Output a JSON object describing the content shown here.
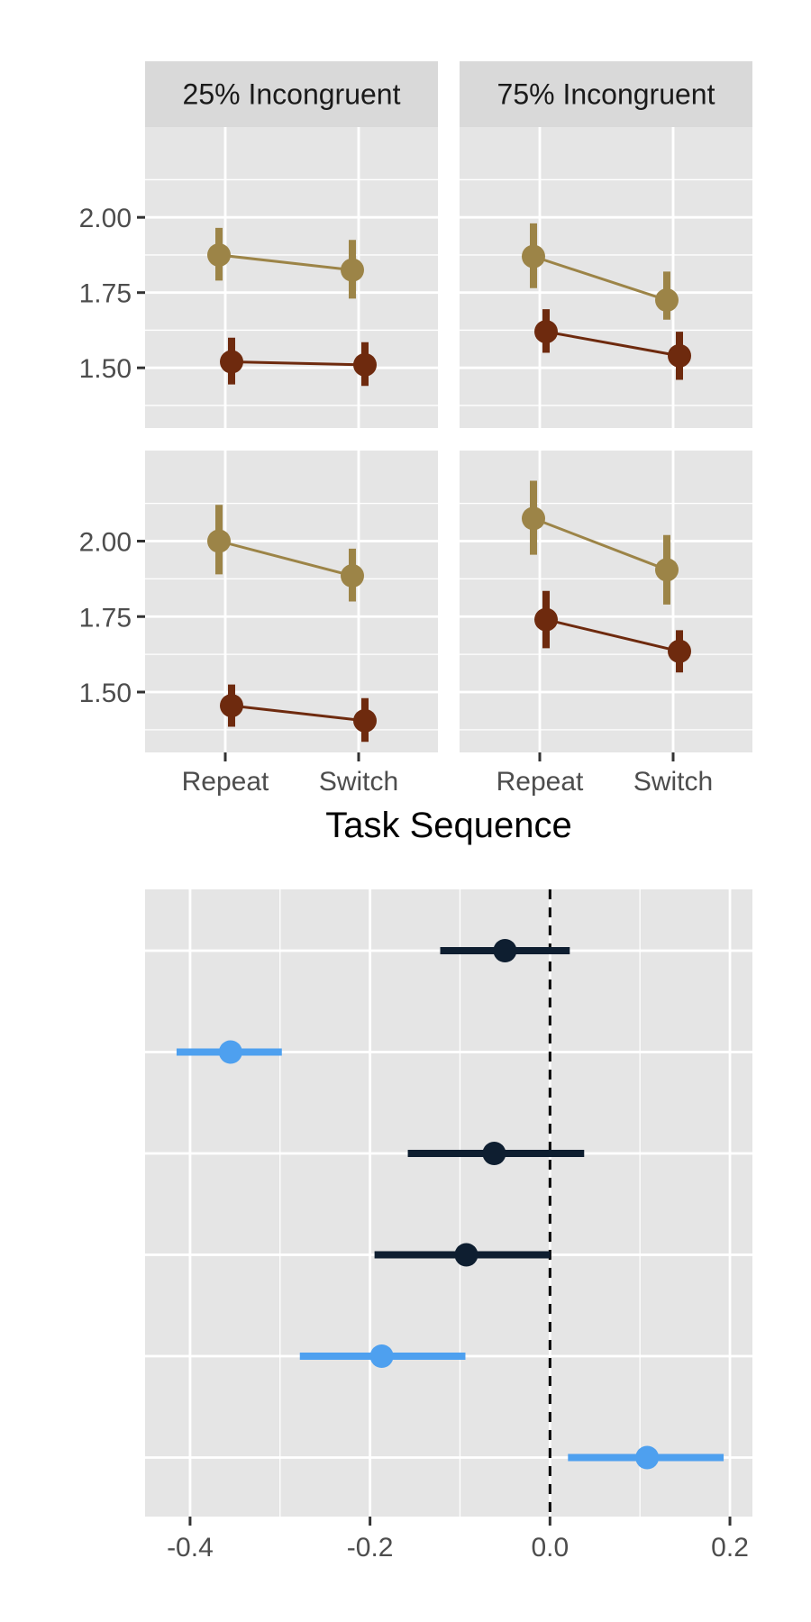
{
  "colors": {
    "tan": "#9c8447",
    "brown": "#6e2a0e",
    "navy": "#0e1e30",
    "blue": "#4ea0ef",
    "panel_bg": "#e5e5e5",
    "strip_bg": "#d9d9d9",
    "grid": "#ffffff",
    "tick_text": "#4d4d4d"
  },
  "chart_data": [
    {
      "type": "line",
      "chart_id": "facet-line",
      "facets": [
        "25% Incongruent",
        "75% Incongruent"
      ],
      "rows": 2,
      "xlabel": "Task Sequence",
      "categories": [
        "Repeat",
        "Switch"
      ],
      "ylim": [
        1.3,
        2.3
      ],
      "yticks": [
        1.5,
        1.75,
        2.0
      ],
      "ytick_labels": [
        "1.50",
        "1.75",
        "2.00"
      ],
      "panels": [
        {
          "row": 0,
          "col": 0,
          "series": [
            {
              "color": "tan",
              "values": [
                1.875,
                1.825
              ],
              "err_low": [
                1.79,
                1.73
              ],
              "err_high": [
                1.965,
                1.925
              ]
            },
            {
              "color": "brown",
              "values": [
                1.52,
                1.51
              ],
              "err_low": [
                1.445,
                1.44
              ],
              "err_high": [
                1.6,
                1.585
              ]
            }
          ]
        },
        {
          "row": 0,
          "col": 1,
          "series": [
            {
              "color": "tan",
              "values": [
                1.87,
                1.725
              ],
              "err_low": [
                1.765,
                1.66
              ],
              "err_high": [
                1.98,
                1.82
              ]
            },
            {
              "color": "brown",
              "values": [
                1.62,
                1.54
              ],
              "err_low": [
                1.55,
                1.46
              ],
              "err_high": [
                1.695,
                1.62
              ]
            }
          ]
        },
        {
          "row": 1,
          "col": 0,
          "series": [
            {
              "color": "tan",
              "values": [
                2.0,
                1.885
              ],
              "err_low": [
                1.89,
                1.8
              ],
              "err_high": [
                2.12,
                1.975
              ]
            },
            {
              "color": "brown",
              "values": [
                1.455,
                1.405
              ],
              "err_low": [
                1.385,
                1.335
              ],
              "err_high": [
                1.525,
                1.48
              ]
            }
          ]
        },
        {
          "row": 1,
          "col": 1,
          "series": [
            {
              "color": "tan",
              "values": [
                2.075,
                1.905
              ],
              "err_low": [
                1.955,
                1.79
              ],
              "err_high": [
                2.2,
                2.02
              ]
            },
            {
              "color": "brown",
              "values": [
                1.74,
                1.635
              ],
              "err_low": [
                1.645,
                1.565
              ],
              "err_high": [
                1.835,
                1.705
              ]
            }
          ]
        }
      ]
    },
    {
      "type": "scatter",
      "chart_id": "coef-plot",
      "xlim": [
        -0.45,
        0.225
      ],
      "xticks": [
        -0.4,
        -0.2,
        0.0,
        0.2
      ],
      "xtick_labels": [
        "-0.4",
        "-0.2",
        "0.0",
        "0.2"
      ],
      "reference_line_x": 0.0,
      "points": [
        {
          "x": -0.05,
          "low": -0.122,
          "high": 0.022,
          "color": "navy"
        },
        {
          "x": -0.355,
          "low": -0.415,
          "high": -0.298,
          "color": "blue"
        },
        {
          "x": -0.062,
          "low": -0.158,
          "high": 0.038,
          "color": "navy"
        },
        {
          "x": -0.093,
          "low": -0.195,
          "high": 0.0,
          "color": "navy"
        },
        {
          "x": -0.187,
          "low": -0.278,
          "high": -0.094,
          "color": "blue"
        },
        {
          "x": 0.108,
          "low": 0.02,
          "high": 0.193,
          "color": "blue"
        }
      ]
    }
  ]
}
